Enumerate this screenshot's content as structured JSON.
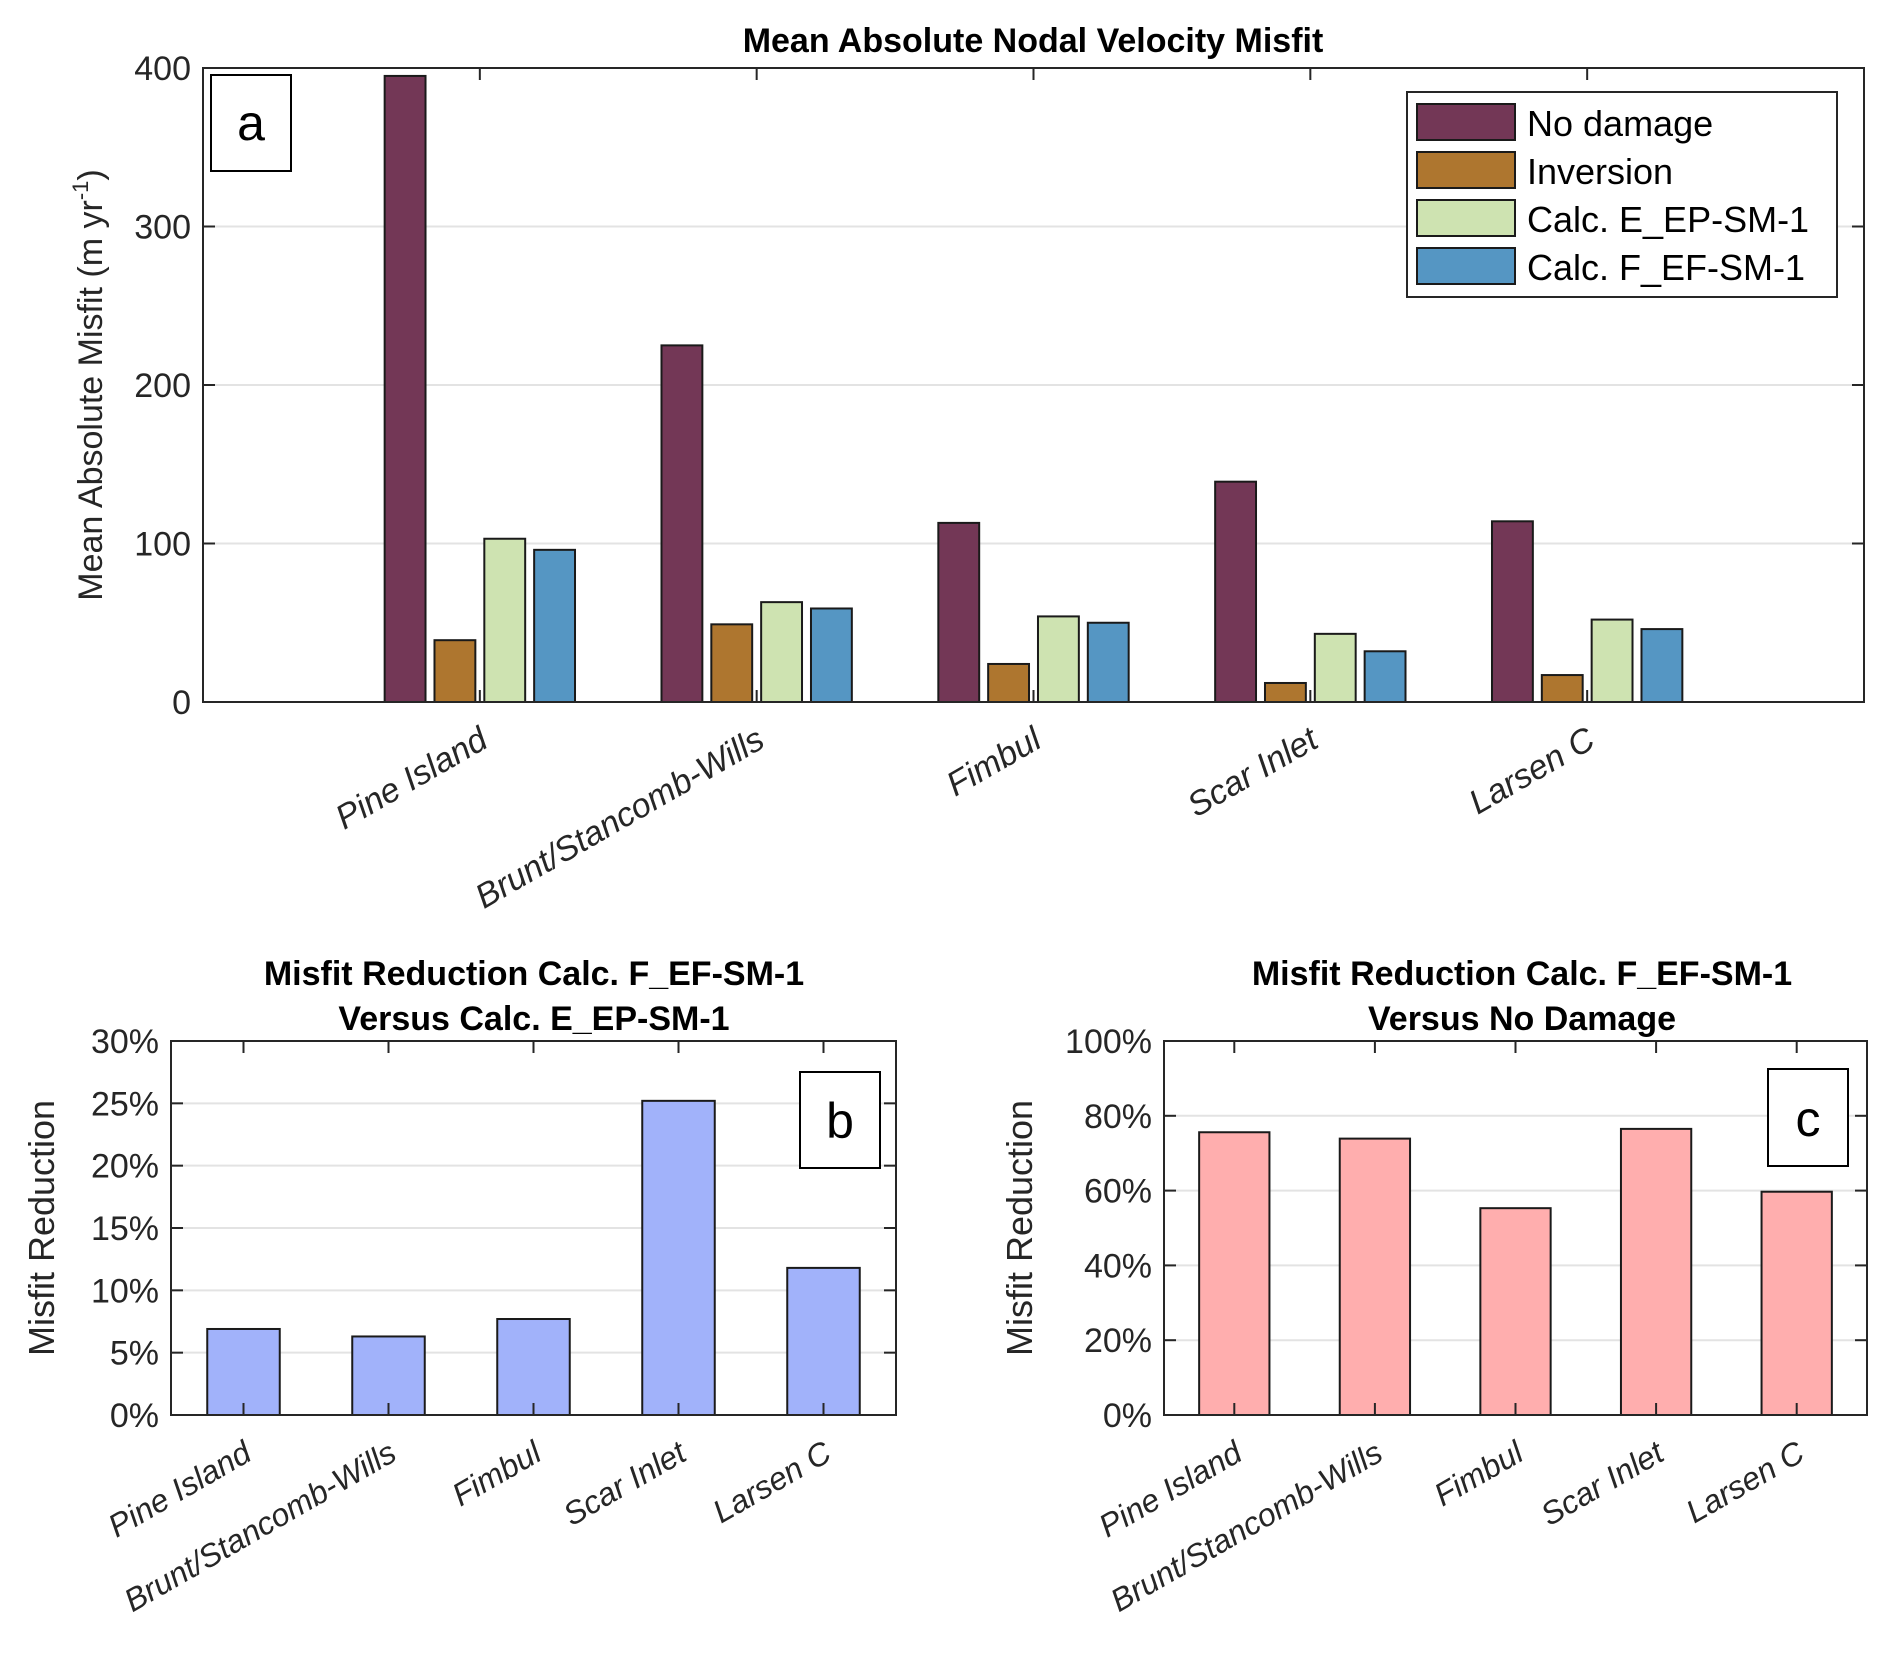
{
  "chart_data": [
    {
      "id": "a",
      "type": "bar",
      "panel_label": "a",
      "title": "Mean Absolute Nodal Velocity Misfit",
      "xlabel": "",
      "ylabel": "Mean Absolute Misfit (m yr",
      "ylabel_superscript": "-1",
      "ylabel_suffix": ")",
      "categories": [
        "Pine Island",
        "Brunt/Stancomb-Wills",
        "Fimbul",
        "Scar Inlet",
        "Larsen C"
      ],
      "ylim": [
        0,
        400
      ],
      "yticks": [
        0,
        100,
        200,
        300,
        400
      ],
      "ytick_labels": [
        "0",
        "100",
        "200",
        "300",
        "400"
      ],
      "grid": true,
      "legend_position": "top-right",
      "series": [
        {
          "name": "No damage",
          "color": "#733756",
          "values": [
            395,
            225,
            113,
            139,
            114
          ]
        },
        {
          "name": "Inversion",
          "color": "#AE762F",
          "values": [
            39,
            49,
            24,
            12,
            17
          ]
        },
        {
          "name": "Calc. E_EP-SM-1",
          "color": "#CEE3B1",
          "values": [
            103,
            63,
            54,
            43,
            52
          ]
        },
        {
          "name": "Calc. F_EF-SM-1",
          "color": "#5596C3",
          "values": [
            96,
            59,
            50,
            32,
            46
          ]
        }
      ]
    },
    {
      "id": "b",
      "type": "bar",
      "panel_label": "b",
      "title": "Misfit Reduction Calc. F_EF-SM-1",
      "subtitle": "Versus Calc. E_EP-SM-1",
      "xlabel": "",
      "ylabel": "Misfit Reduction",
      "categories": [
        "Pine Island",
        "Brunt/Stancomb-Wills",
        "Fimbul",
        "Scar Inlet",
        "Larsen C"
      ],
      "ylim": [
        0,
        30
      ],
      "yticks": [
        0,
        5,
        10,
        15,
        20,
        25,
        30
      ],
      "ytick_labels": [
        "0%",
        "5%",
        "10%",
        "15%",
        "20%",
        "25%",
        "30%"
      ],
      "grid": true,
      "unit": "%",
      "color": "#A1B2FA",
      "values": [
        6.9,
        6.3,
        7.7,
        25.2,
        11.8
      ]
    },
    {
      "id": "c",
      "type": "bar",
      "panel_label": "c",
      "title": "Misfit Reduction Calc. F_EF-SM-1",
      "subtitle": "Versus No Damage",
      "xlabel": "",
      "ylabel": "Misfit Reduction",
      "categories": [
        "Pine Island",
        "Brunt/Stancomb-Wills",
        "Fimbul",
        "Scar Inlet",
        "Larsen C"
      ],
      "ylim": [
        0,
        100
      ],
      "yticks": [
        0,
        20,
        40,
        60,
        80,
        100
      ],
      "ytick_labels": [
        "0%",
        "20%",
        "40%",
        "60%",
        "80%",
        "100%"
      ],
      "grid": true,
      "unit": "%",
      "color": "#FFAEAE",
      "values": [
        75.6,
        73.9,
        55.3,
        76.5,
        59.7
      ]
    }
  ]
}
